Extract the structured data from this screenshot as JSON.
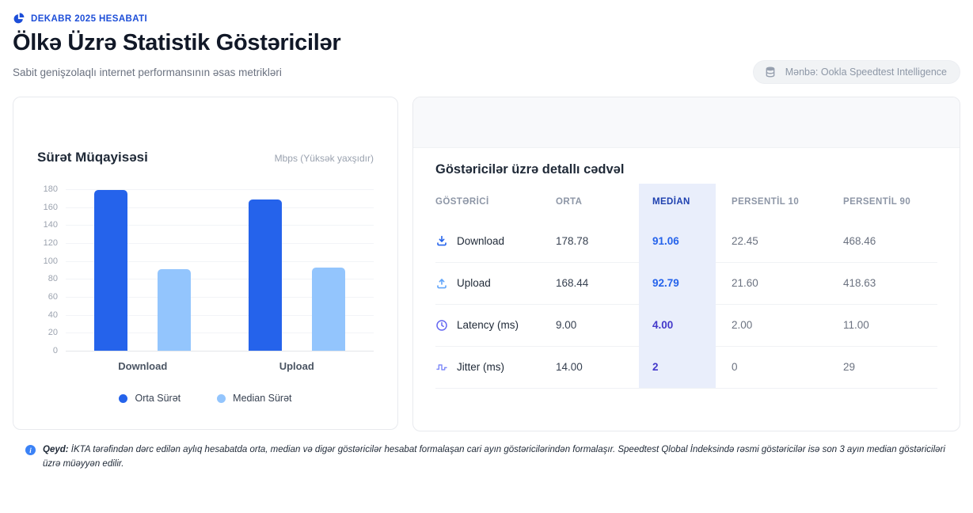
{
  "header": {
    "eyebrow": "DEKABR 2025 HESABATI",
    "title": "Ölkə Üzrə Statistik Göstəricilər",
    "subtitle": "Sabit genişzolaqlı internet performansının əsas metrikləri",
    "source_badge": "Mənbə: Ookla Speedtest Intelligence"
  },
  "chart": {
    "title": "Sürət Müqayisəsi",
    "unit_label": "Mbps (Yüksək yaxşıdır)"
  },
  "chart_data": {
    "type": "bar",
    "title": "Sürət Müqayisəsi",
    "ylabel": "Mbps",
    "ylim": [
      0,
      180
    ],
    "yticks": [
      180,
      160,
      140,
      120,
      100,
      80,
      60,
      40,
      20,
      0
    ],
    "grid": true,
    "legend_position": "bottom",
    "categories": [
      "Download",
      "Upload"
    ],
    "series": [
      {
        "name": "Orta Sürət",
        "values": [
          178.78,
          168.44
        ],
        "color": "#2563eb"
      },
      {
        "name": "Median Sürət",
        "values": [
          91.06,
          92.79
        ],
        "color": "#93c5fd"
      }
    ]
  },
  "table": {
    "heading": "Göstəricilər üzrə detallı cədvəl",
    "columns": [
      "GÖSTƏRİCİ",
      "ORTA",
      "MEDİAN",
      "PERSENTİL 10",
      "PERSENTİL 90"
    ],
    "rows": [
      {
        "icon": "download-icon",
        "icon_color": "#2563eb",
        "label": "Download",
        "orta": "178.78",
        "median": "91.06",
        "median_color": "#2563eb",
        "p10": "22.45",
        "p90": "468.46"
      },
      {
        "icon": "upload-icon",
        "icon_color": "#60a5fa",
        "label": "Upload",
        "orta": "168.44",
        "median": "92.79",
        "median_color": "#2563eb",
        "p10": "21.60",
        "p90": "418.63"
      },
      {
        "icon": "clock-icon",
        "icon_color": "#6366f1",
        "label": "Latency (ms)",
        "orta": "9.00",
        "median": "4.00",
        "median_color": "#4338ca",
        "p10": "2.00",
        "p90": "11.00"
      },
      {
        "icon": "jitter-icon",
        "icon_color": "#818cf8",
        "label": "Jitter (ms)",
        "orta": "14.00",
        "median": "2",
        "median_color": "#4338ca",
        "p10": "0",
        "p90": "29"
      }
    ]
  },
  "note": {
    "label": "Qeyd:",
    "text": "İKTA tərəfindən dərc edilən aylıq hesabatda orta, median və digər göstəricilər hesabat formalaşan cari ayın göstəricilərindən formalaşır. Speedtest Qlobal İndeksində rəsmi göstəricilər isə son 3 ayın median göstəriciləri üzrə müəyyən edilir."
  },
  "colors": {
    "accent_blue": "#2563eb",
    "light_blue": "#93c5fd",
    "indigo": "#4338ca",
    "eyebrow_blue": "#1d4ed8",
    "median_column_bg": "#e9eefb",
    "info_blue": "#3b82f6"
  }
}
